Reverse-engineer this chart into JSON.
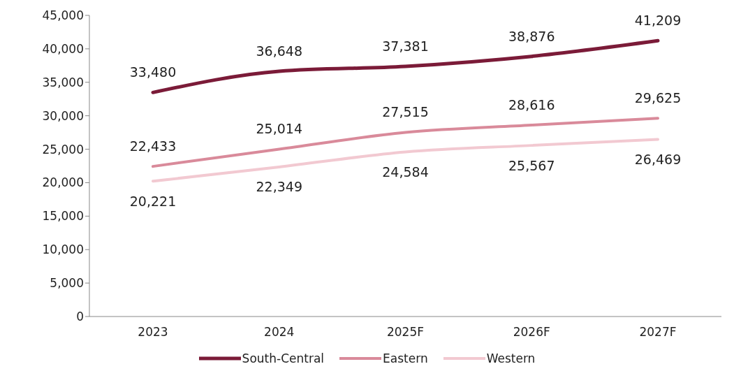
{
  "chart_data": {
    "type": "line",
    "categories": [
      "2023",
      "2024",
      "2025F",
      "2026F",
      "2027F"
    ],
    "series": [
      {
        "name": "South-Central",
        "color": "#7b1b38",
        "values": [
          33480,
          36648,
          37381,
          38876,
          41209
        ],
        "value_labels": [
          "33,480",
          "36,648",
          "37,381",
          "38,876",
          "41,209"
        ]
      },
      {
        "name": "Eastern",
        "color": "#d98a9a",
        "values": [
          22433,
          25014,
          27515,
          28616,
          29625
        ],
        "value_labels": [
          "22,433",
          "25,014",
          "27,515",
          "28,616",
          "29,625"
        ]
      },
      {
        "name": "Western",
        "color": "#f2c9d1",
        "values": [
          20221,
          22349,
          24584,
          25567,
          26469
        ],
        "value_labels": [
          "20,221",
          "22,349",
          "24,584",
          "25,567",
          "26,469"
        ]
      }
    ],
    "ylim": [
      0,
      45000
    ],
    "yticks": [
      0,
      {
        "value": 5000,
        "label": "5,000"
      },
      {
        "value": 10000,
        "label": "10,000"
      },
      {
        "value": 15000,
        "label": "15,000"
      },
      {
        "value": 20000,
        "label": "20,000"
      },
      {
        "value": 25000,
        "label": "25,000"
      },
      {
        "value": 30000,
        "label": "30,000"
      },
      {
        "value": 35000,
        "label": "35,000"
      },
      {
        "value": 40000,
        "label": "40,000"
      },
      {
        "value": 45000,
        "label": "45,000"
      }
    ],
    "grid": false,
    "legend": "bottom",
    "marker": "none",
    "line_style": "solid"
  }
}
